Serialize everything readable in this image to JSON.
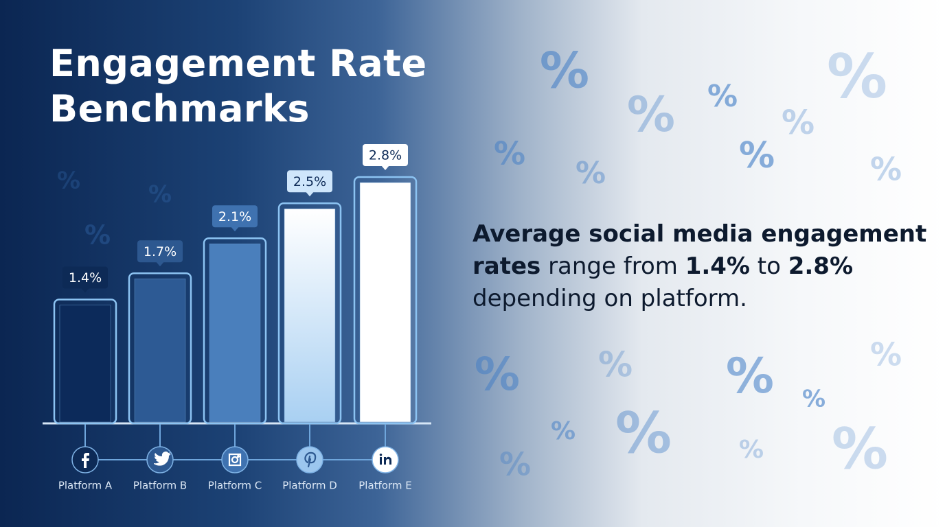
{
  "chart_data": {
    "type": "bar",
    "title": "Engagement Rate Benchmarks",
    "categories": [
      "Platform A",
      "Platform B",
      "Platform C",
      "Platform D",
      "Platform E"
    ],
    "values": [
      1.4,
      1.7,
      2.1,
      2.5,
      2.8
    ],
    "value_labels": [
      "1.4%",
      "1.7%",
      "2.1%",
      "2.5%",
      "2.8%"
    ],
    "colors": [
      "#0c2a5a",
      "#2d5a94",
      "#4a7fbc",
      "#bcdcf6",
      "#ffffff"
    ]
  },
  "description": [
    {
      "text": "Average social media engagement",
      "bold": true
    },
    {
      "text": "rates",
      "bold": true
    },
    {
      "text": " range from ",
      "bold": false
    },
    {
      "text": "1.4%",
      "bold": true
    },
    {
      "text": " to ",
      "bold": false
    },
    {
      "text": "2.8%",
      "bold": true
    },
    {
      "text": "depending on platform.",
      "bold": false
    }
  ],
  "decor_symbol": "%"
}
